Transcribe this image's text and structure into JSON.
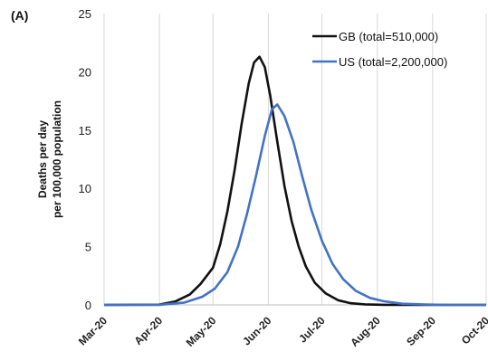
{
  "chart_data": {
    "type": "line",
    "panel_label": "(A)",
    "ylabel": [
      "Deaths per day",
      "per 100,000 population"
    ],
    "ylim": [
      0,
      25
    ],
    "yticks": [
      0,
      5,
      10,
      15,
      20,
      25
    ],
    "xticks": [
      "Mar-20",
      "Apr-20",
      "May-20",
      "Jun-20",
      "Jul-20",
      "Aug-20",
      "Sep-20",
      "Oct-20"
    ],
    "xlim": [
      "2020-03-01",
      "2020-10-01"
    ],
    "grid": "vertical",
    "legend_position": "top-right",
    "series": [
      {
        "name": "GB (total=510,000)",
        "color": "#111111",
        "x": [
          "2020-03-01",
          "2020-04-01",
          "2020-04-10",
          "2020-04-18",
          "2020-04-24",
          "2020-05-01",
          "2020-05-05",
          "2020-05-09",
          "2020-05-13",
          "2020-05-17",
          "2020-05-21",
          "2020-05-24",
          "2020-05-27",
          "2020-05-30",
          "2020-06-02",
          "2020-06-06",
          "2020-06-10",
          "2020-06-14",
          "2020-06-18",
          "2020-06-22",
          "2020-06-27",
          "2020-07-03",
          "2020-07-10",
          "2020-07-17",
          "2020-07-25",
          "2020-08-05",
          "2020-08-20",
          "2020-10-01"
        ],
        "y": [
          0,
          0.02,
          0.3,
          0.9,
          1.8,
          3.2,
          5.2,
          8.0,
          11.5,
          15.5,
          19.0,
          20.8,
          21.3,
          20.4,
          18.0,
          14.0,
          10.2,
          7.2,
          5.0,
          3.3,
          1.9,
          1.0,
          0.4,
          0.15,
          0.05,
          0.01,
          0,
          0
        ]
      },
      {
        "name": "US (total=2,200,000)",
        "color": "#4472c4",
        "x": [
          "2020-03-01",
          "2020-04-01",
          "2020-04-15",
          "2020-04-25",
          "2020-05-02",
          "2020-05-09",
          "2020-05-15",
          "2020-05-20",
          "2020-05-25",
          "2020-05-30",
          "2020-06-03",
          "2020-06-06",
          "2020-06-10",
          "2020-06-15",
          "2020-06-20",
          "2020-06-25",
          "2020-07-01",
          "2020-07-07",
          "2020-07-13",
          "2020-07-20",
          "2020-07-28",
          "2020-08-05",
          "2020-08-15",
          "2020-08-28",
          "2020-09-10",
          "2020-10-01"
        ],
        "y": [
          0,
          0.01,
          0.2,
          0.7,
          1.4,
          2.8,
          5.0,
          7.8,
          11.0,
          14.5,
          16.8,
          17.2,
          16.2,
          14.0,
          11.0,
          8.2,
          5.5,
          3.5,
          2.2,
          1.2,
          0.6,
          0.3,
          0.1,
          0.03,
          0,
          0
        ]
      }
    ]
  }
}
